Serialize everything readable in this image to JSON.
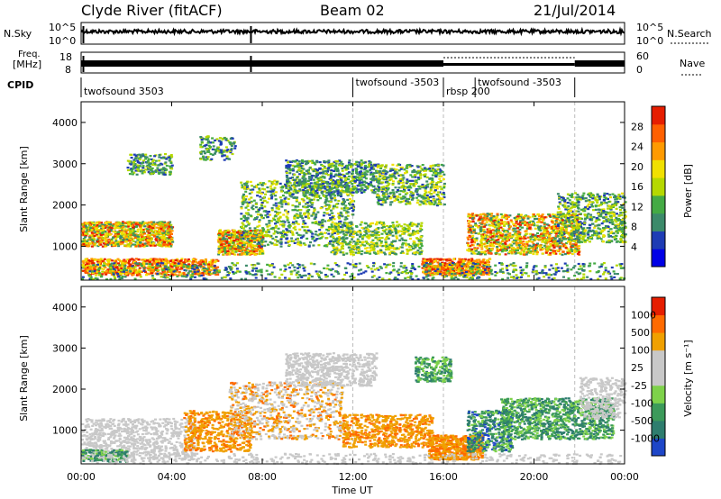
{
  "header": {
    "station": "Clyde River (fitACF)",
    "beam": "Beam 02",
    "date": "21/Jul/2014"
  },
  "colors": {
    "power_scale": [
      "#0000e6",
      "#1e3cb4",
      "#3c8a6a",
      "#44aa44",
      "#b5d800",
      "#f0e000",
      "#ff9a00",
      "#ff6000",
      "#e61e00"
    ],
    "velocity_scale": [
      "#1e46c8",
      "#2e7d6e",
      "#3c9a5a",
      "#7ed24a",
      "#c8c8c8",
      "#c8c8c8",
      "#f0a000",
      "#ff6a00",
      "#e61e00"
    ]
  },
  "chart_data": [
    {
      "type": "line",
      "name": "noise-panel",
      "left_label": "N.Sky",
      "right_label": "N.Search",
      "left_ticks": [
        "10^5",
        "10^0"
      ],
      "right_ticks": [
        "10^5",
        "10^0"
      ]
    },
    {
      "type": "line",
      "name": "frequency-panel",
      "left_label_1": "Freq.",
      "left_label_2": "[MHz]",
      "right_label": "Nave",
      "left_ticks": [
        "18",
        "8"
      ],
      "right_ticks": [
        "60",
        "0"
      ]
    },
    {
      "type": "table",
      "name": "cpid-panel",
      "label": "CPID",
      "segments": [
        {
          "text": "twofsound 3503",
          "start": 0.0
        },
        {
          "text": "twofsound -3503",
          "start": 12.0
        },
        {
          "text": "rbsp 200",
          "start": 16.0
        },
        {
          "text": "twofsound -3503",
          "start": 17.4
        }
      ]
    },
    {
      "type": "heatmap",
      "name": "power-panel",
      "xlim": [
        0,
        24
      ],
      "ylim": [
        180,
        4500
      ],
      "ylabel": "Slant Range [km]",
      "yticks": [
        "1000",
        "2000",
        "3000",
        "4000"
      ],
      "colorbar_label": "Power [dB]",
      "colorbar_ticks": [
        "28",
        "24",
        "20",
        "16",
        "12",
        "8",
        "4"
      ]
    },
    {
      "type": "heatmap",
      "name": "velocity-panel",
      "xlim": [
        0,
        24
      ],
      "ylim": [
        180,
        4500
      ],
      "xlabel": "Time UT",
      "ylabel": "Slant Range [km]",
      "xticks": [
        "00:00",
        "04:00",
        "08:00",
        "12:00",
        "16:00",
        "20:00",
        "00:00"
      ],
      "yticks": [
        "1000",
        "2000",
        "3000",
        "4000"
      ],
      "colorbar_label": "Velocity [m s⁻¹]",
      "colorbar_ticks": [
        "1000",
        "500",
        "100",
        "25",
        "-25",
        "-100",
        "-500",
        "-1000"
      ]
    }
  ]
}
